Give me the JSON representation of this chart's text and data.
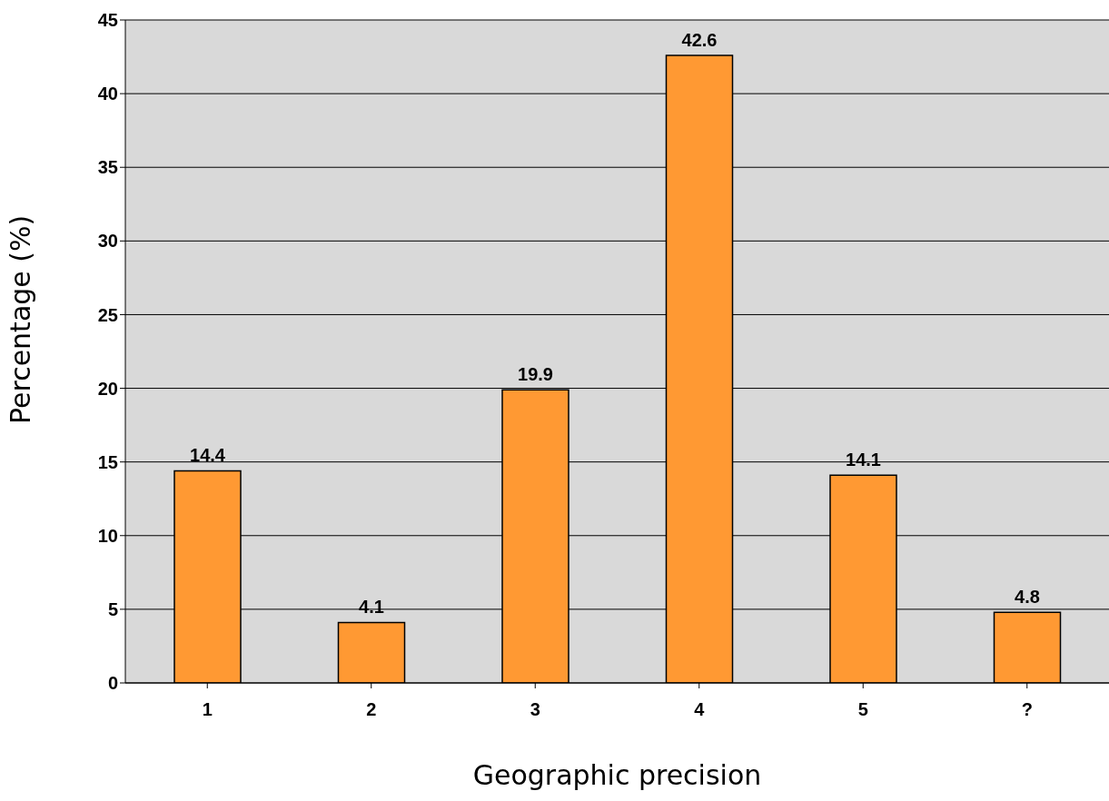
{
  "chart_data": {
    "type": "bar",
    "xlabel": "Geographic precision",
    "ylabel": "Percentage (%)",
    "categories": [
      "1",
      "2",
      "3",
      "4",
      "5",
      "?"
    ],
    "values": [
      14.4,
      4.1,
      19.9,
      42.6,
      14.1,
      4.8
    ],
    "color": "#ff9933",
    "ylim": [
      0,
      45
    ],
    "yticks": [
      0,
      5,
      10,
      15,
      20,
      25,
      30,
      35,
      40,
      45
    ],
    "grid": "y",
    "data_labels": true,
    "legend": false
  }
}
